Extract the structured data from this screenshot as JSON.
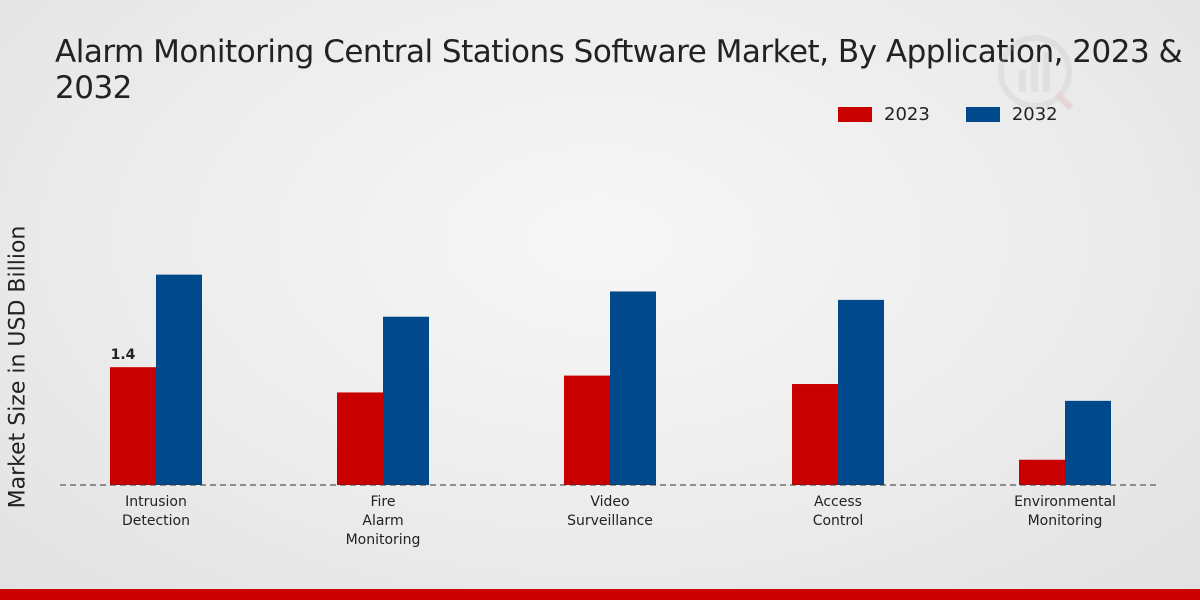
{
  "colors": {
    "series_2023": "#c80000",
    "series_2032": "#004a8c",
    "axis": "#333333",
    "bottom_bar": "#cc0000"
  },
  "chart_data": {
    "type": "bar",
    "title": "Alarm Monitoring Central Stations Software Market, By Application, 2023 & 2032",
    "xlabel": "",
    "ylabel": "Market Size in USD Billion",
    "categories": [
      [
        "Intrusion",
        "Detection"
      ],
      [
        "Fire",
        "Alarm",
        "Monitoring"
      ],
      [
        "Video",
        "Surveillance"
      ],
      [
        "Access",
        "Control"
      ],
      [
        "Environmental",
        "Monitoring"
      ]
    ],
    "series": [
      {
        "name": "2023",
        "values": [
          1.4,
          1.1,
          1.3,
          1.2,
          0.3
        ]
      },
      {
        "name": "2032",
        "values": [
          2.5,
          2.0,
          2.3,
          2.2,
          1.0
        ]
      }
    ],
    "data_labels": [
      {
        "series": "2023",
        "category_index": 0,
        "text": "1.4"
      }
    ],
    "ylim": [
      0,
      4.1
    ],
    "grid": false,
    "legend_position": "top-right"
  }
}
